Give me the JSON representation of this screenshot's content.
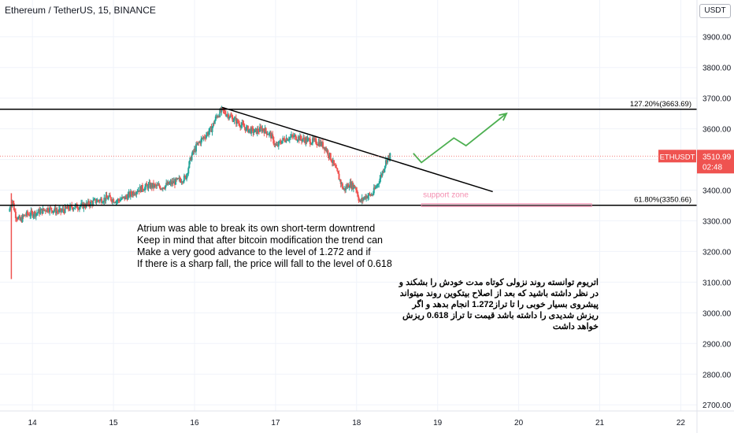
{
  "header": {
    "title": "Ethereum / TetherUS, 15, BINANCE"
  },
  "currency_button": "USDT",
  "chart_data": {
    "type": "candlestick",
    "symbol": "ETHUSDT",
    "ylim": [
      2680,
      4020
    ],
    "y_ticks": [
      "3900.00",
      "3800.00",
      "3700.00",
      "3600.00",
      "3500.00",
      "3400.00",
      "3300.00",
      "3200.00",
      "3100.00",
      "3000.00",
      "2900.00",
      "2800.00",
      "2700.00"
    ],
    "y_tick_values": [
      3900,
      3800,
      3700,
      3600,
      3500,
      3400,
      3300,
      3200,
      3100,
      3000,
      2900,
      2800,
      2700
    ],
    "x_ticks": [
      "14",
      "15",
      "16",
      "17",
      "18",
      "19",
      "20",
      "21",
      "22"
    ],
    "x_tick_days": [
      14,
      15,
      16,
      17,
      18,
      19,
      20,
      21,
      22
    ],
    "x_range_days": [
      13.6,
      22.2
    ],
    "price_path": [
      [
        13.72,
        3330
      ],
      [
        13.76,
        3370
      ],
      [
        13.8,
        3320
      ],
      [
        13.86,
        3300
      ],
      [
        13.92,
        3320
      ],
      [
        14.05,
        3325
      ],
      [
        14.2,
        3340
      ],
      [
        14.35,
        3330
      ],
      [
        14.5,
        3345
      ],
      [
        14.65,
        3350
      ],
      [
        14.8,
        3365
      ],
      [
        14.95,
        3375
      ],
      [
        15.05,
        3365
      ],
      [
        15.15,
        3375
      ],
      [
        15.3,
        3400
      ],
      [
        15.45,
        3415
      ],
      [
        15.6,
        3410
      ],
      [
        15.75,
        3425
      ],
      [
        15.9,
        3440
      ],
      [
        15.97,
        3510
      ],
      [
        16.05,
        3550
      ],
      [
        16.15,
        3580
      ],
      [
        16.22,
        3600
      ],
      [
        16.28,
        3640
      ],
      [
        16.35,
        3660
      ],
      [
        16.45,
        3640
      ],
      [
        16.55,
        3620
      ],
      [
        16.65,
        3600
      ],
      [
        16.75,
        3590
      ],
      [
        16.85,
        3600
      ],
      [
        16.95,
        3580
      ],
      [
        17.02,
        3540
      ],
      [
        17.08,
        3560
      ],
      [
        17.15,
        3570
      ],
      [
        17.25,
        3575
      ],
      [
        17.35,
        3565
      ],
      [
        17.45,
        3560
      ],
      [
        17.55,
        3555
      ],
      [
        17.62,
        3540
      ],
      [
        17.7,
        3500
      ],
      [
        17.78,
        3450
      ],
      [
        17.85,
        3400
      ],
      [
        17.92,
        3420
      ],
      [
        18.0,
        3410
      ],
      [
        18.05,
        3360
      ],
      [
        18.12,
        3380
      ],
      [
        18.2,
        3385
      ],
      [
        18.27,
        3420
      ],
      [
        18.33,
        3460
      ],
      [
        18.38,
        3500
      ],
      [
        18.42,
        3511
      ]
    ],
    "last_price": "3510.99",
    "countdown": "02:48",
    "symbol_label": "ETHUSDT",
    "fib_levels": [
      {
        "label": "127.20%(3663.69)",
        "value": 3663.69
      },
      {
        "label": "61.80%(3350.66)",
        "value": 3350.66
      }
    ],
    "trendline": [
      [
        16.34,
        3670
      ],
      [
        19.68,
        3395
      ]
    ],
    "projection": [
      [
        18.7,
        3520
      ],
      [
        18.8,
        3490
      ],
      [
        19.2,
        3570
      ],
      [
        19.35,
        3545
      ],
      [
        19.85,
        3650
      ]
    ],
    "support_zone": {
      "label": "support zone",
      "low": 3346,
      "high": 3356,
      "from": 18.8,
      "to": 20.9
    }
  },
  "annotation_en": [
    "Atrium was able to break its own short-term downtrend",
    "Keep in mind that after bitcoin modification the trend can",
    "Make a very good advance to the level of 1.272 and if",
    "If there is a sharp fall, the price will fall to the level of 0.618"
  ],
  "annotation_fa": [
    "اتریوم توانسته روند نزولی کوتاه مدت خودش را بشکند و",
    "در نظر داشته باشید که بعد از اصلاح  بیتکوین روند میتواند",
    "پیشروی بسیار خوبی را تا تراز1.272 انجام بدهد و اگر",
    "ریزش شدیدی را داشته باشد قیمت تا تراز 0.618 ریزش",
    "خواهد داشت"
  ],
  "colors": {
    "up": "#26a69a",
    "down": "#ef5350",
    "projection": "#4caf50",
    "support": "#f48fb1",
    "badge": "#ef5350"
  }
}
